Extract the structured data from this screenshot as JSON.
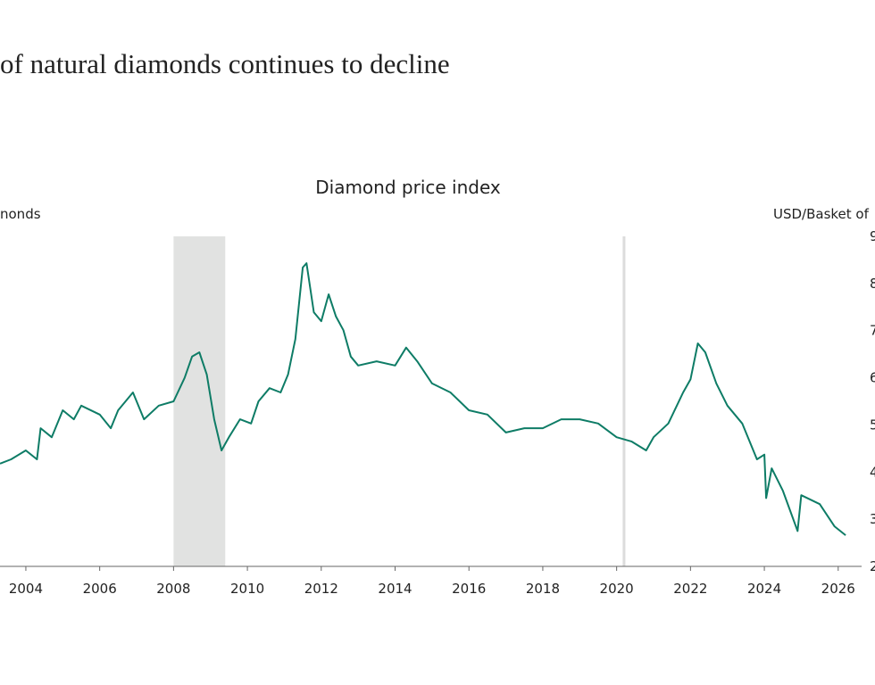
{
  "chart_data": {
    "type": "line",
    "title": "of natural diamonds continues to decline",
    "subtitle": "Diamond price index",
    "y_label": "nonds",
    "y2_label": "USD/Basket of",
    "color": "#0e7c66",
    "x": [
      2003.3,
      2003.6,
      2004.0,
      2004.3,
      2004.4,
      2004.7,
      2005.0,
      2005.3,
      2005.5,
      2006.0,
      2006.3,
      2006.5,
      2006.9,
      2007.2,
      2007.6,
      2008.0,
      2008.3,
      2008.5,
      2008.7,
      2008.9,
      2009.1,
      2009.3,
      2009.5,
      2009.8,
      2010.1,
      2010.3,
      2010.6,
      2010.9,
      2011.1,
      2011.3,
      2011.5,
      2011.6,
      2011.8,
      2012.0,
      2012.2,
      2012.4,
      2012.6,
      2012.8,
      2013.0,
      2013.5,
      2014.0,
      2014.3,
      2014.6,
      2015.0,
      2015.5,
      2016.0,
      2016.5,
      2017.0,
      2017.5,
      2018.0,
      2018.5,
      2019.0,
      2019.5,
      2020.0,
      2020.4,
      2020.8,
      2021.0,
      2021.4,
      2021.8,
      2022.0,
      2022.2,
      2022.4,
      2022.7,
      2023.0,
      2023.4,
      2023.8,
      2024.0,
      2024.05,
      2024.2,
      2024.5,
      2024.9,
      2025.0,
      2025.5,
      2025.9,
      2026.2
    ],
    "values": [
      4.18,
      4.27,
      4.46,
      4.27,
      4.93,
      4.74,
      5.31,
      5.12,
      5.41,
      5.22,
      4.93,
      5.31,
      5.69,
      5.12,
      5.41,
      5.5,
      6.0,
      6.45,
      6.54,
      6.07,
      5.12,
      4.46,
      4.74,
      5.12,
      5.03,
      5.5,
      5.78,
      5.69,
      6.07,
      6.82,
      8.34,
      8.43,
      7.39,
      7.2,
      7.77,
      7.3,
      7.01,
      6.45,
      6.26,
      6.35,
      6.26,
      6.64,
      6.35,
      5.88,
      5.69,
      5.31,
      5.22,
      4.84,
      4.93,
      4.93,
      5.12,
      5.12,
      5.03,
      4.74,
      4.65,
      4.46,
      4.74,
      5.03,
      5.69,
      5.97,
      6.73,
      6.54,
      5.88,
      5.41,
      5.03,
      4.27,
      4.37,
      3.45,
      4.08,
      3.61,
      2.75,
      3.51,
      3.32,
      2.85,
      2.66
    ],
    "axis": "y2",
    "xlim": [
      2003.3,
      2026.9
    ],
    "xticks": [
      2004,
      2006,
      2008,
      2010,
      2012,
      2014,
      2016,
      2018,
      2020,
      2022,
      2024,
      2026
    ],
    "y2lim": [
      2,
      9
    ],
    "y2ticks": [
      2,
      3,
      4,
      5,
      6,
      7,
      8,
      9
    ],
    "shaded_periods": [
      [
        2008.0,
        2009.4
      ]
    ],
    "vlines": [
      2020.2
    ]
  }
}
